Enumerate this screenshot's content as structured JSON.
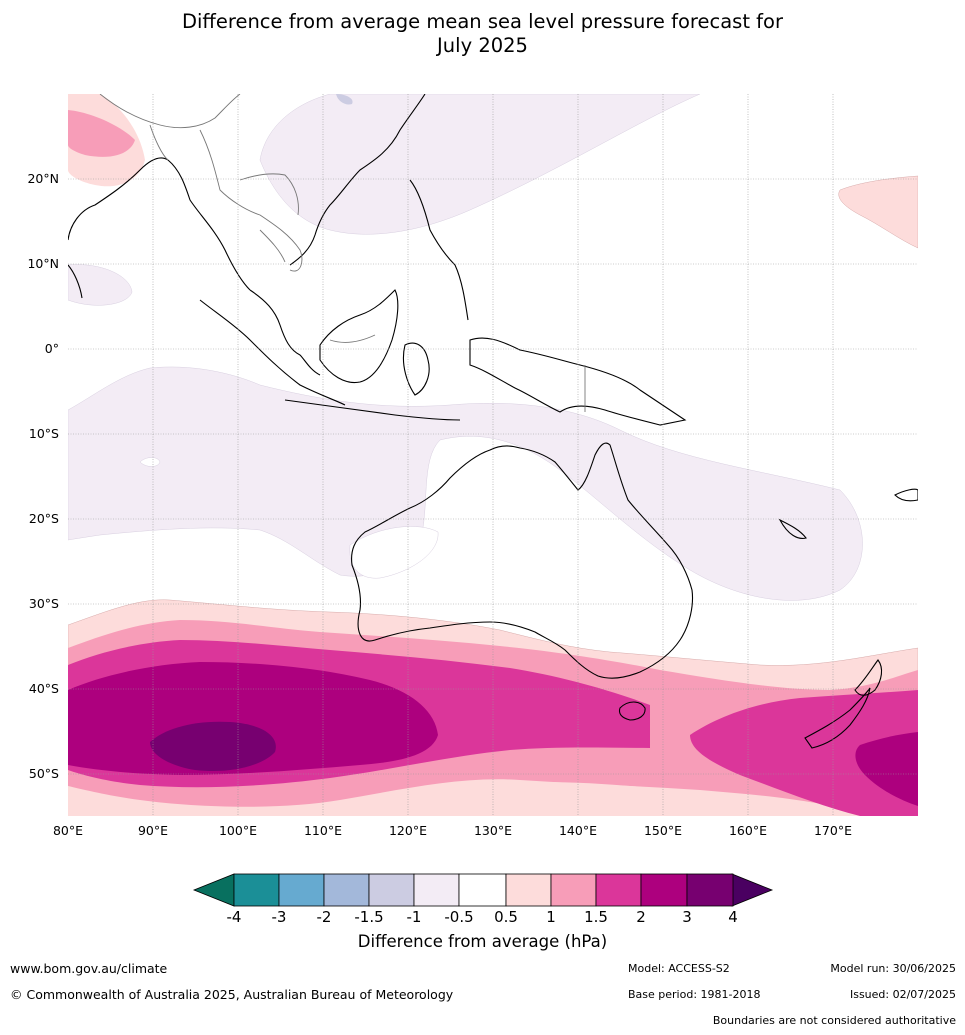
{
  "title_line1": "Difference from average mean sea level pressure forecast for",
  "title_line2": "July 2025",
  "latitude_labels": [
    "20°N",
    "10°N",
    "0°",
    "10°S",
    "20°S",
    "30°S",
    "40°S",
    "50°S"
  ],
  "longitude_labels": [
    "80°E",
    "90°E",
    "100°E",
    "110°E",
    "120°E",
    "130°E",
    "140°E",
    "150°E",
    "160°E",
    "170°E"
  ],
  "colorbar": {
    "title": "Difference from average (hPa)",
    "ticks": [
      "-4",
      "-3",
      "-2",
      "-1.5",
      "-1",
      "-0.5",
      "0.5",
      "1",
      "1.5",
      "2",
      "3",
      "4"
    ],
    "colors": [
      "#08705f",
      "#1b8f97",
      "#66aad0",
      "#a3b8da",
      "#cccce2",
      "#f3ecf5",
      "#ffffff",
      "#fddcdb",
      "#f79db8",
      "#db369a",
      "#ad007e",
      "#770070",
      "#4a0061"
    ]
  },
  "footer": {
    "website": "www.bom.gov.au/climate",
    "copyright": "© Commonwealth of Australia 2025, Australian Bureau of Meteorology",
    "model": "Model: ACCESS-S2",
    "base_period": "Base period: 1981-2018",
    "model_run": "Model run: 30/06/2025",
    "issued": "Issued: 02/07/2025",
    "disclaimer": "Boundaries are not considered authoritative"
  }
}
